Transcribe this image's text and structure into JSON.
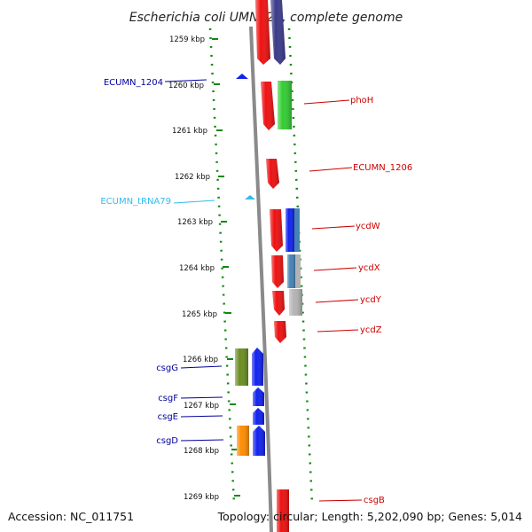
{
  "title": "Escherichia coli UMN026, complete genome",
  "accession": "Accession: NC_011751",
  "summary": "Topology: circular; Length: 5,202,090 bp; Genes: 5,014",
  "scale": {
    "ticks": [
      "1259 kbp",
      "1260 kbp",
      "1261 kbp",
      "1262 kbp",
      "1263 kbp",
      "1264 kbp",
      "1265 kbp",
      "1266 kbp",
      "1267 kbp",
      "1268 kbp",
      "1269 kbp"
    ]
  },
  "colors": {
    "red": "#ee1111",
    "blue": "#1122ee",
    "green": "#33cc33",
    "navy": "#3a3a8a",
    "olive": "#6b8e23",
    "orange": "#ff8c00",
    "steelblue": "#4682b4",
    "gray": "#b3b3b3",
    "cyan": "#33bbee",
    "scale": "#118811",
    "left_label": "#00009c",
    "right_label": "#cc0000"
  },
  "genes": [
    {
      "label": "phoH",
      "side": "right",
      "color": "right_label"
    },
    {
      "label": "ECUMN_1206",
      "side": "right",
      "color": "right_label"
    },
    {
      "label": "ycdW",
      "side": "right",
      "color": "right_label"
    },
    {
      "label": "ycdX",
      "side": "right",
      "color": "right_label"
    },
    {
      "label": "ycdY",
      "side": "right",
      "color": "right_label"
    },
    {
      "label": "ycdZ",
      "side": "right",
      "color": "right_label"
    },
    {
      "label": "csgB",
      "side": "right",
      "color": "right_label"
    },
    {
      "label": "ECUMN_1204",
      "side": "left",
      "color": "left_label"
    },
    {
      "label": "ECUMN_tRNA79",
      "side": "left",
      "color": "cyan"
    },
    {
      "label": "csgG",
      "side": "left",
      "color": "left_label"
    },
    {
      "label": "csgF",
      "side": "left",
      "color": "left_label"
    },
    {
      "label": "csgE",
      "side": "left",
      "color": "left_label"
    },
    {
      "label": "csgD",
      "side": "left",
      "color": "left_label"
    }
  ]
}
